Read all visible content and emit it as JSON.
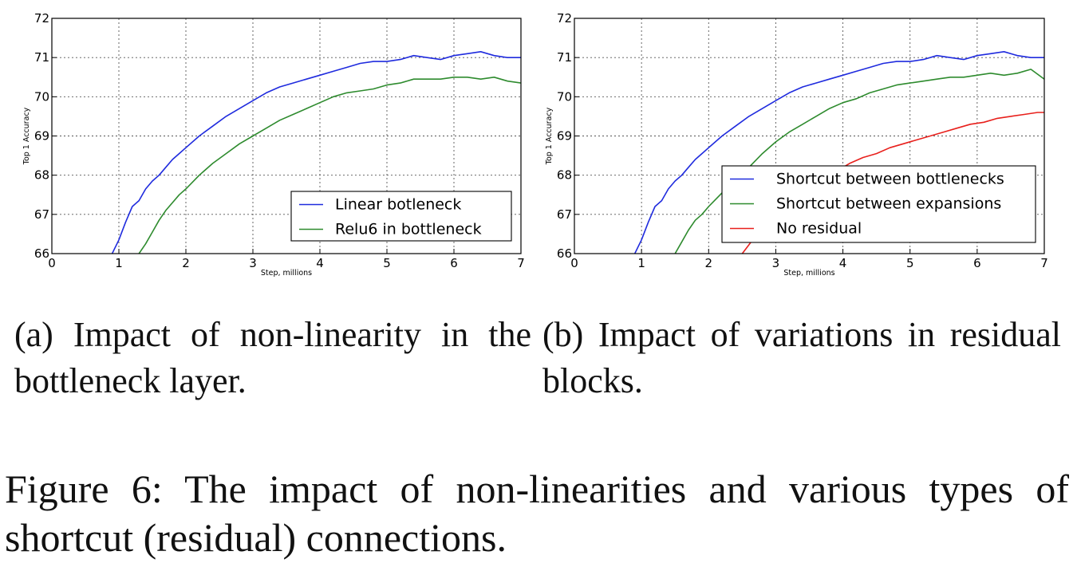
{
  "chart_data": [
    {
      "type": "line",
      "panel": "a",
      "xlabel": "Step, millions",
      "ylabel": "Top 1 Accuracy",
      "xlim": [
        0,
        7
      ],
      "ylim": [
        66,
        72
      ],
      "xticks": [
        "0",
        "1",
        "2",
        "3",
        "4",
        "5",
        "6",
        "7"
      ],
      "yticks": [
        "66",
        "67",
        "68",
        "69",
        "70",
        "71",
        "72"
      ],
      "grid": true,
      "legend_position": "lower-right",
      "series": [
        {
          "name": "Linear botleneck",
          "color": "#1f2bde",
          "x": [
            0.9,
            1.0,
            1.1,
            1.2,
            1.3,
            1.4,
            1.5,
            1.6,
            1.7,
            1.8,
            1.9,
            2.0,
            2.2,
            2.4,
            2.6,
            2.8,
            3.0,
            3.2,
            3.4,
            3.6,
            3.8,
            4.0,
            4.2,
            4.4,
            4.6,
            4.8,
            5.0,
            5.2,
            5.4,
            5.6,
            5.8,
            6.0,
            6.2,
            6.4,
            6.6,
            6.8,
            7.0
          ],
          "y": [
            66.0,
            66.35,
            66.8,
            67.2,
            67.35,
            67.65,
            67.85,
            68.0,
            68.2,
            68.4,
            68.55,
            68.7,
            69.0,
            69.25,
            69.5,
            69.7,
            69.9,
            70.1,
            70.25,
            70.35,
            70.45,
            70.55,
            70.65,
            70.75,
            70.85,
            70.9,
            70.9,
            70.95,
            71.05,
            71.0,
            70.95,
            71.05,
            71.1,
            71.15,
            71.05,
            71.0,
            71.0
          ]
        },
        {
          "name": "Relu6 in bottleneck",
          "color": "#2e8b2e",
          "x": [
            1.3,
            1.4,
            1.5,
            1.6,
            1.7,
            1.8,
            1.9,
            2.0,
            2.2,
            2.4,
            2.6,
            2.8,
            3.0,
            3.2,
            3.4,
            3.6,
            3.8,
            4.0,
            4.2,
            4.4,
            4.6,
            4.8,
            5.0,
            5.2,
            5.4,
            5.6,
            5.8,
            6.0,
            6.2,
            6.4,
            6.6,
            6.8,
            7.0
          ],
          "y": [
            66.0,
            66.25,
            66.55,
            66.85,
            67.1,
            67.3,
            67.5,
            67.65,
            68.0,
            68.3,
            68.55,
            68.8,
            69.0,
            69.2,
            69.4,
            69.55,
            69.7,
            69.85,
            70.0,
            70.1,
            70.15,
            70.2,
            70.3,
            70.35,
            70.45,
            70.45,
            70.45,
            70.5,
            70.5,
            70.45,
            70.5,
            70.4,
            70.35
          ]
        }
      ]
    },
    {
      "type": "line",
      "panel": "b",
      "xlabel": "Step, millions",
      "ylabel": "Top 1 Accuracy",
      "xlim": [
        0,
        7
      ],
      "ylim": [
        66,
        72
      ],
      "xticks": [
        "0",
        "1",
        "2",
        "3",
        "4",
        "5",
        "6",
        "7"
      ],
      "yticks": [
        "66",
        "67",
        "68",
        "69",
        "70",
        "71",
        "72"
      ],
      "grid": true,
      "legend_position": "lower-right",
      "series": [
        {
          "name": "Shortcut between bottlenecks",
          "color": "#1f2bde",
          "x": [
            0.9,
            1.0,
            1.1,
            1.2,
            1.3,
            1.4,
            1.5,
            1.6,
            1.7,
            1.8,
            1.9,
            2.0,
            2.2,
            2.4,
            2.6,
            2.8,
            3.0,
            3.2,
            3.4,
            3.6,
            3.8,
            4.0,
            4.2,
            4.4,
            4.6,
            4.8,
            5.0,
            5.2,
            5.4,
            5.6,
            5.8,
            6.0,
            6.2,
            6.4,
            6.6,
            6.8,
            7.0
          ],
          "y": [
            66.0,
            66.35,
            66.8,
            67.2,
            67.35,
            67.65,
            67.85,
            68.0,
            68.2,
            68.4,
            68.55,
            68.7,
            69.0,
            69.25,
            69.5,
            69.7,
            69.9,
            70.1,
            70.25,
            70.35,
            70.45,
            70.55,
            70.65,
            70.75,
            70.85,
            70.9,
            70.9,
            70.95,
            71.05,
            71.0,
            70.95,
            71.05,
            71.1,
            71.15,
            71.05,
            71.0,
            71.0
          ]
        },
        {
          "name": "Shortcut between expansions",
          "color": "#2e8b2e",
          "x": [
            1.5,
            1.6,
            1.7,
            1.8,
            1.9,
            2.0,
            2.2,
            2.4,
            2.6,
            2.8,
            3.0,
            3.2,
            3.4,
            3.6,
            3.8,
            4.0,
            4.2,
            4.4,
            4.6,
            4.8,
            5.0,
            5.2,
            5.4,
            5.6,
            5.8,
            6.0,
            6.2,
            6.4,
            6.6,
            6.8,
            7.0
          ],
          "y": [
            66.0,
            66.3,
            66.6,
            66.85,
            67.0,
            67.2,
            67.55,
            67.85,
            68.2,
            68.55,
            68.85,
            69.1,
            69.3,
            69.5,
            69.7,
            69.85,
            69.95,
            70.1,
            70.2,
            70.3,
            70.35,
            70.4,
            70.45,
            70.5,
            70.5,
            70.55,
            70.6,
            70.55,
            70.6,
            70.7,
            70.45
          ]
        },
        {
          "name": "No residual",
          "color": "#e8201c",
          "x": [
            2.5,
            2.7,
            2.9,
            3.1,
            3.3,
            3.5,
            3.7,
            3.9,
            4.1,
            4.3,
            4.5,
            4.7,
            4.9,
            5.1,
            5.3,
            5.5,
            5.7,
            5.9,
            6.1,
            6.3,
            6.5,
            6.7,
            6.9,
            7.0
          ],
          "y": [
            66.0,
            66.45,
            66.85,
            67.15,
            67.45,
            67.7,
            67.9,
            68.1,
            68.3,
            68.45,
            68.55,
            68.7,
            68.8,
            68.9,
            69.0,
            69.1,
            69.2,
            69.3,
            69.35,
            69.45,
            69.5,
            69.55,
            69.6,
            69.6
          ]
        }
      ]
    }
  ],
  "captions": {
    "a": "(a) Impact of non-linearity in the bottleneck layer.",
    "b": "(b) Impact of variations in residual blocks.",
    "figure": "Figure 6: The impact of non-linearities and various types of shortcut (residual) connections."
  }
}
